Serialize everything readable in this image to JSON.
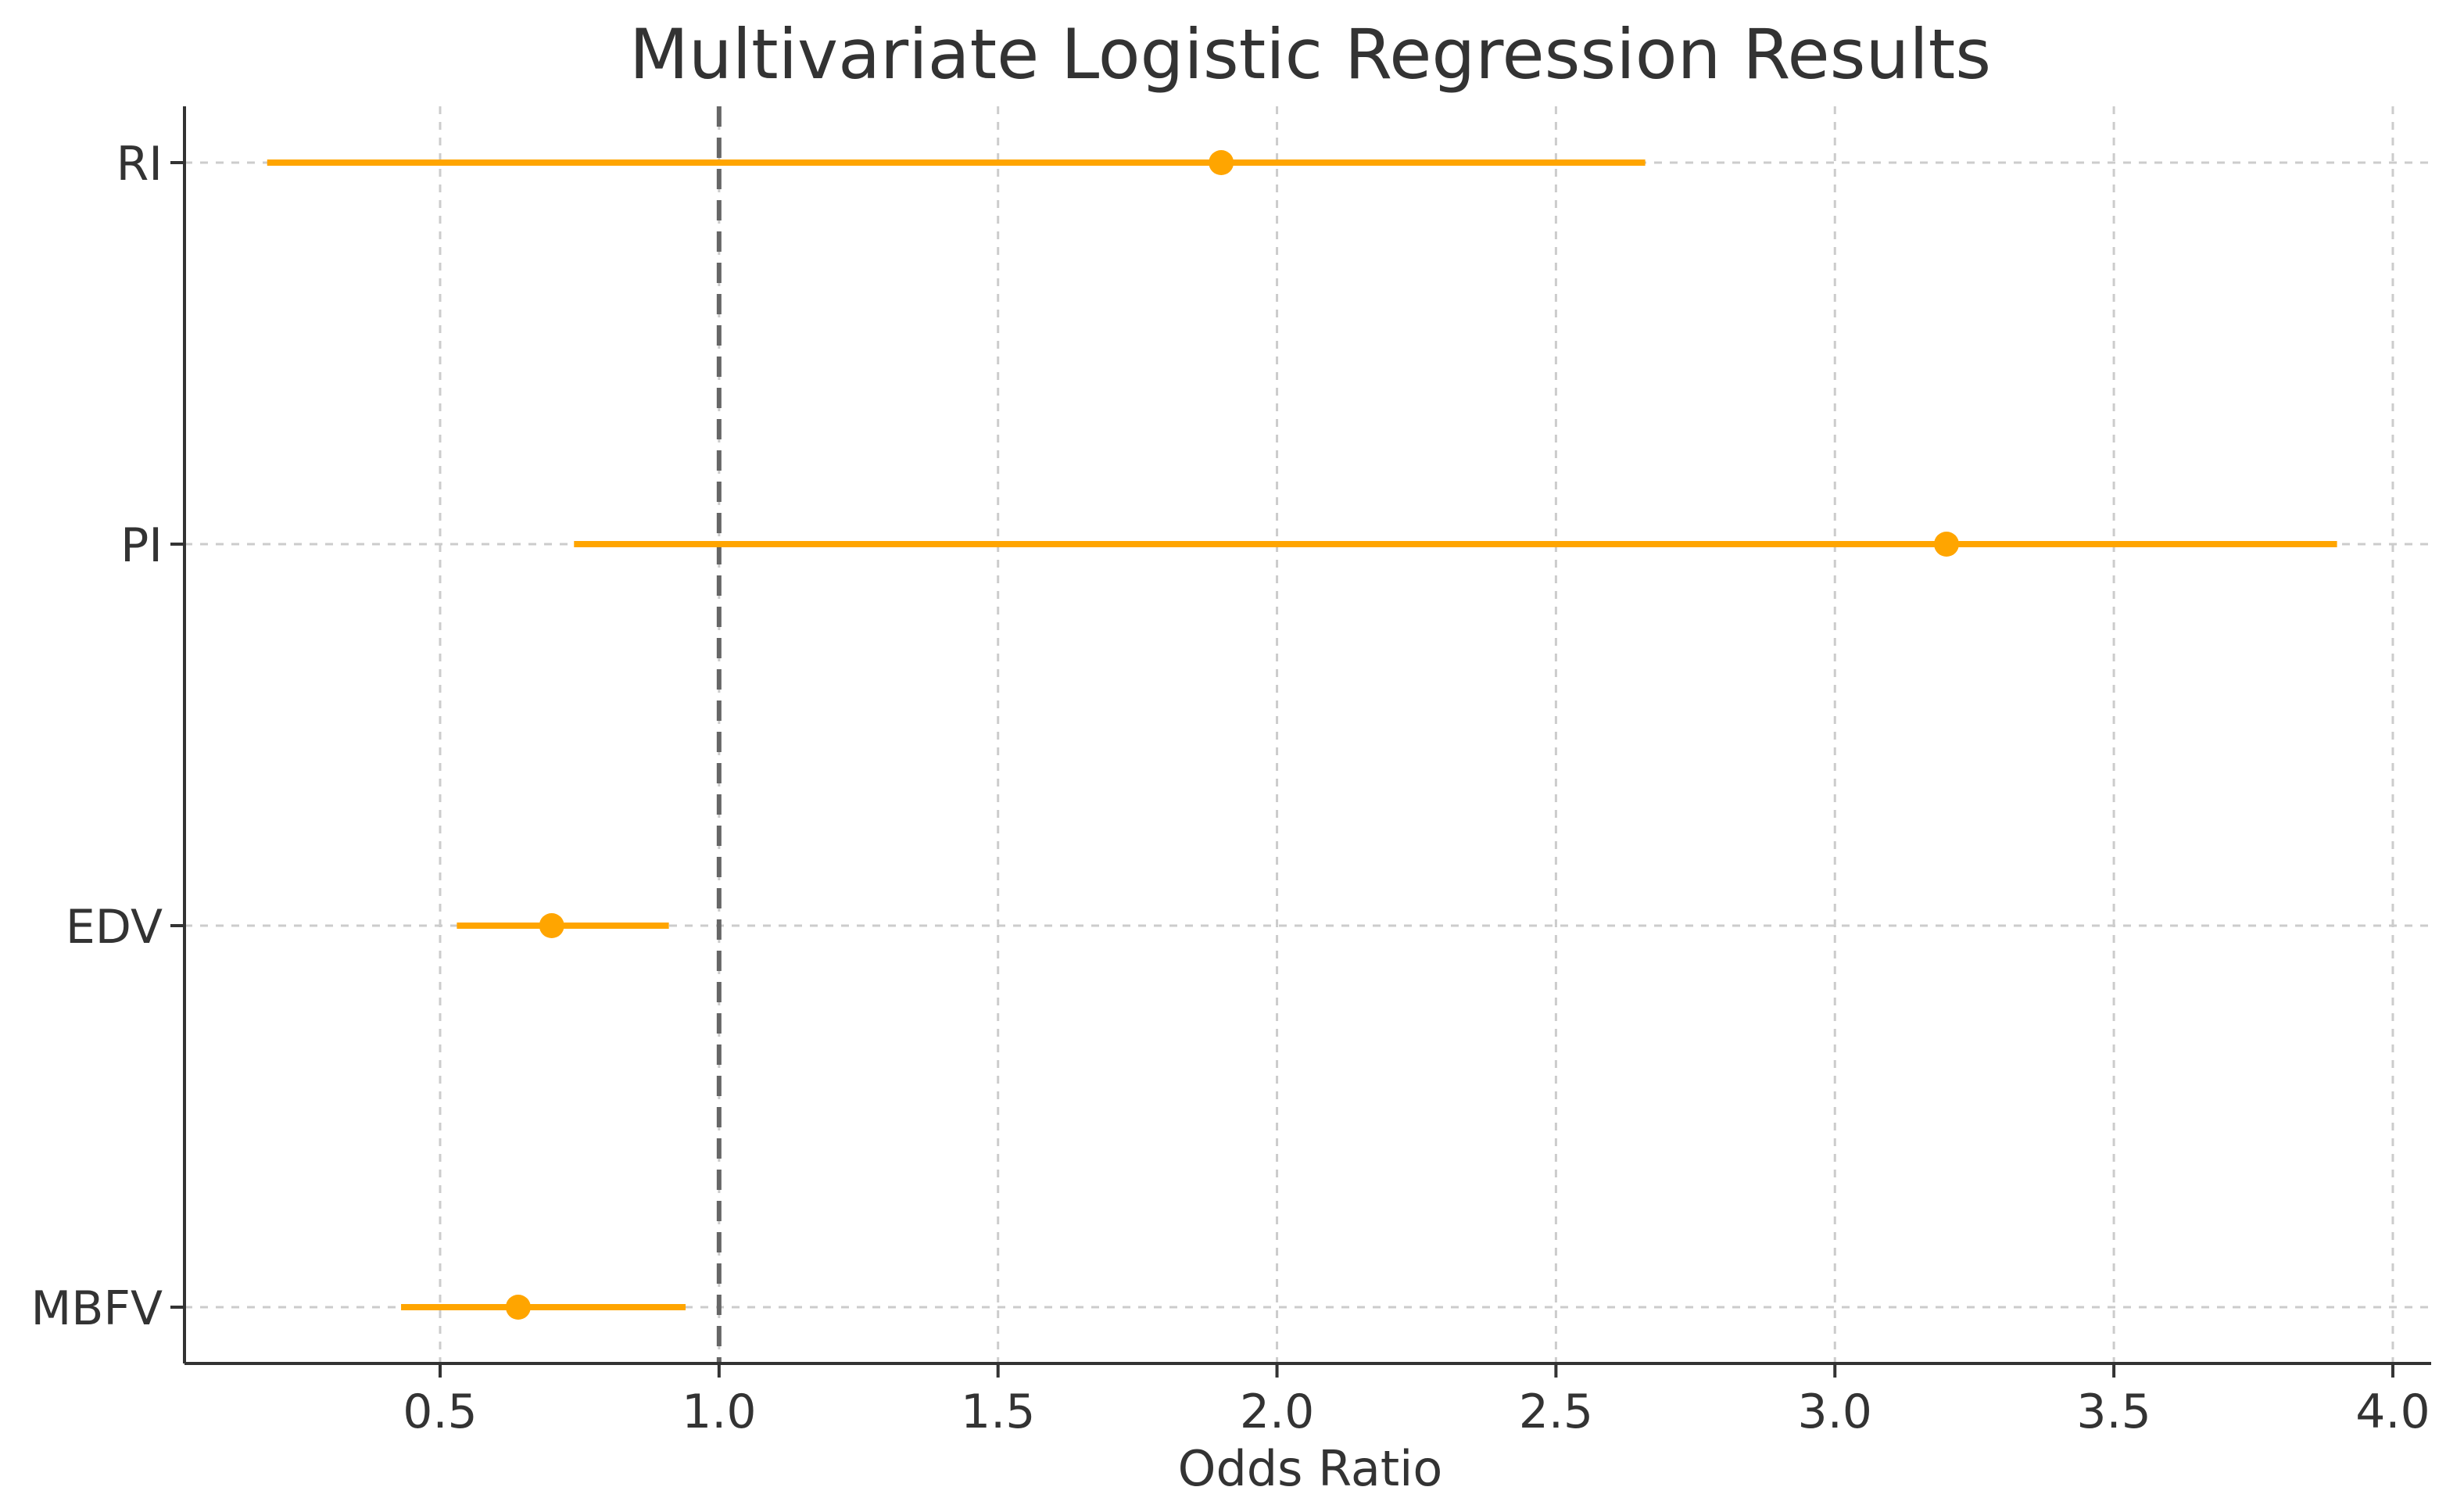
{
  "chart_data": {
    "type": "forest",
    "title": "Multivariate Logistic Regression Results",
    "xlabel": "Odds Ratio",
    "ylabel": "",
    "xlim": [
      0.0,
      4.08
    ],
    "xticks": [
      0.5,
      1.0,
      1.5,
      2.0,
      2.5,
      3.0,
      3.5,
      4.0
    ],
    "xtick_labels": [
      "0.5",
      "1.0",
      "1.5",
      "2.0",
      "2.5",
      "3.0",
      "3.5",
      "4.0"
    ],
    "reference_line": 1.0,
    "grid": true,
    "categories": [
      "RI",
      "PI",
      "EDV",
      "MBFV"
    ],
    "series": [
      {
        "values": [
          1.9,
          3.2,
          0.7,
          0.64
        ],
        "ci_lower": [
          0.19,
          0.74,
          0.53,
          0.43
        ],
        "ci_upper": [
          2.66,
          3.9,
          0.91,
          0.94
        ]
      }
    ],
    "colors": {
      "marker": "#FFA500",
      "reference_line": "#666666",
      "grid": "#cccccc",
      "axis": "#333333"
    }
  }
}
